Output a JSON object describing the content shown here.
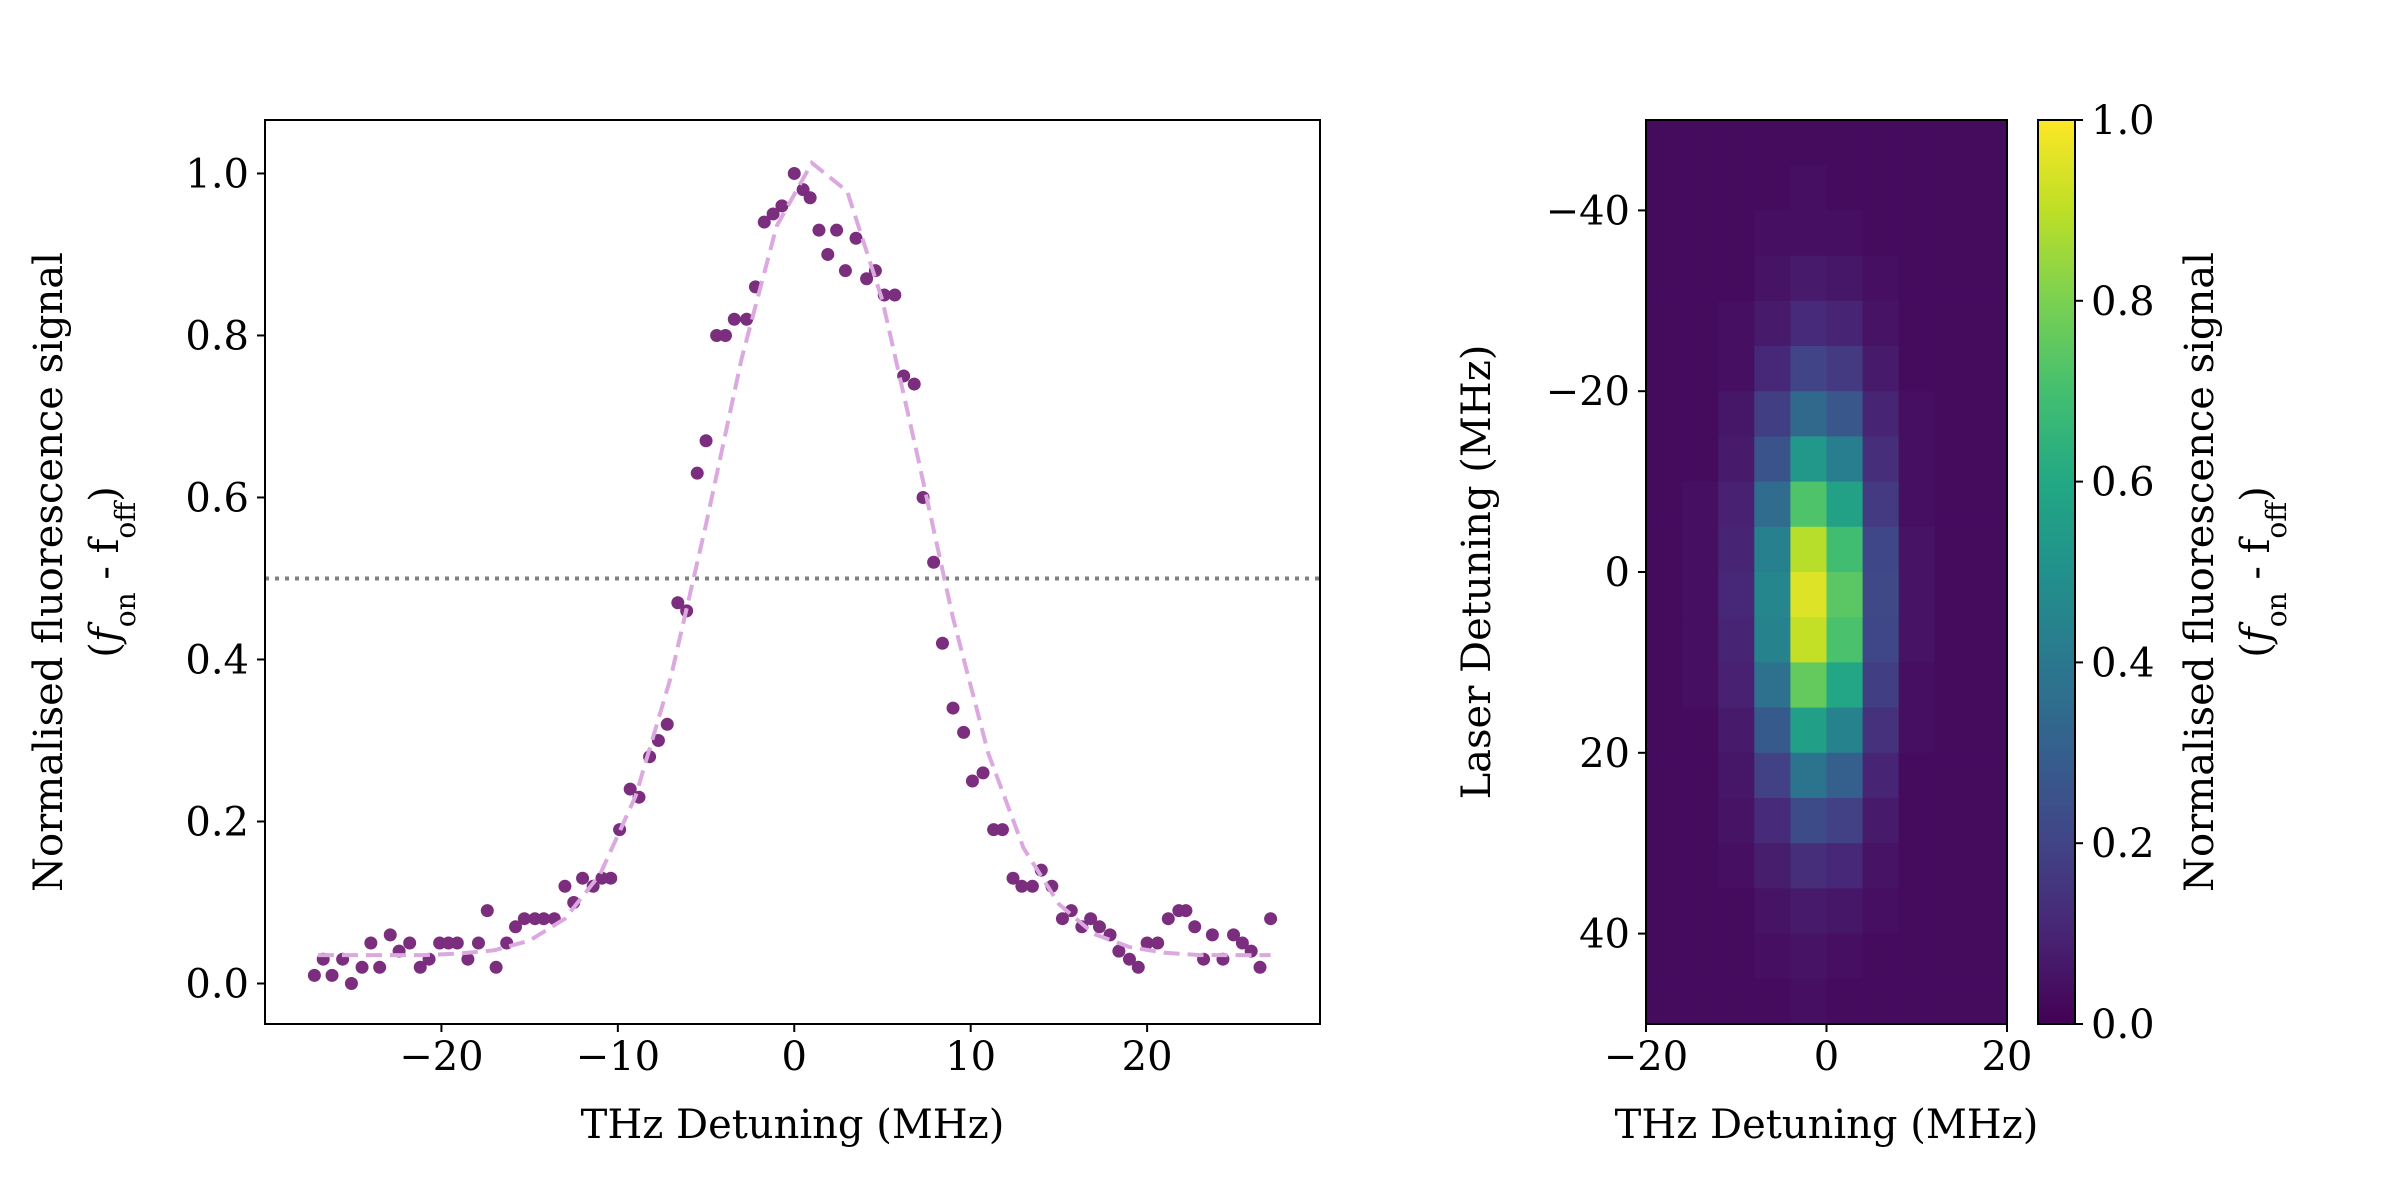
{
  "chart_data": [
    {
      "type": "scatter",
      "xlabel": "THz Detuning (MHz)",
      "ylabel": {
        "line1": "Normalised fluorescence signal",
        "line2": [
          "(",
          "f",
          "on",
          " - f",
          "off",
          ")"
        ]
      },
      "xlim": [
        -30,
        29.8
      ],
      "ylim": [
        -0.05,
        1.066
      ],
      "xticks": [
        {
          "value": -20,
          "label": "−20"
        },
        {
          "value": -10,
          "label": "−10"
        },
        0,
        10,
        20
      ],
      "yticks": [
        {
          "value": 0,
          "label": "0.0"
        },
        {
          "value": 0.2,
          "label": "0.2"
        },
        {
          "value": 0.4,
          "label": "0.4"
        },
        {
          "value": 0.6,
          "label": "0.6"
        },
        {
          "value": 0.8,
          "label": "0.8"
        },
        {
          "value": 1,
          "label": "1.0"
        }
      ],
      "hline": {
        "value": 0.5,
        "color": "#808080",
        "style": "dotted"
      },
      "series": [
        {
          "type": "scatter",
          "color": "#7b2d7e",
          "x": [
            -27.2,
            -26.7,
            -26.2,
            -25.6,
            -25.1,
            -24.5,
            -24.0,
            -23.5,
            -22.9,
            -22.4,
            -21.8,
            -21.2,
            -20.7,
            -20.1,
            -19.6,
            -19.1,
            -18.5,
            -17.9,
            -17.4,
            -16.9,
            -16.3,
            -15.8,
            -15.3,
            -14.7,
            -14.2,
            -13.6,
            -13.0,
            -12.5,
            -12.0,
            -11.4,
            -10.9,
            -10.4,
            -9.9,
            -9.3,
            -8.8,
            -8.2,
            -7.7,
            -7.2,
            -6.6,
            -6.1,
            -5.5,
            -5.0,
            -4.4,
            -3.9,
            -3.4,
            -2.7,
            -2.2,
            -1.7,
            -1.2,
            -0.7,
            0.0,
            0.5,
            0.9,
            1.4,
            1.9,
            2.4,
            2.9,
            3.5,
            4.1,
            4.6,
            5.1,
            5.7,
            6.2,
            6.8,
            7.3,
            7.9,
            8.4,
            9.0,
            9.6,
            10.1,
            10.7,
            11.3,
            11.8,
            12.4,
            12.9,
            13.5,
            14.0,
            14.6,
            15.2,
            15.7,
            16.3,
            16.8,
            17.3,
            17.9,
            18.4,
            19.0,
            19.5,
            20.0,
            20.6,
            21.2,
            21.8,
            22.2,
            22.7,
            23.2,
            23.7,
            24.3,
            24.9,
            25.4,
            25.9,
            26.4,
            27.0
          ],
          "values": [
            0.01,
            0.03,
            0.01,
            0.03,
            0.0,
            0.02,
            0.05,
            0.02,
            0.06,
            0.04,
            0.05,
            0.02,
            0.03,
            0.05,
            0.05,
            0.05,
            0.03,
            0.05,
            0.09,
            0.02,
            0.05,
            0.07,
            0.08,
            0.08,
            0.08,
            0.08,
            0.12,
            0.1,
            0.13,
            0.12,
            0.13,
            0.13,
            0.19,
            0.24,
            0.23,
            0.28,
            0.3,
            0.32,
            0.47,
            0.46,
            0.63,
            0.67,
            0.8,
            0.8,
            0.82,
            0.82,
            0.86,
            0.94,
            0.95,
            0.96,
            1.0,
            0.98,
            0.97,
            0.93,
            0.9,
            0.93,
            0.88,
            0.92,
            0.87,
            0.88,
            0.85,
            0.85,
            0.75,
            0.74,
            0.6,
            0.52,
            0.42,
            0.34,
            0.31,
            0.25,
            0.26,
            0.19,
            0.19,
            0.13,
            0.12,
            0.12,
            0.14,
            0.12,
            0.08,
            0.09,
            0.07,
            0.08,
            0.07,
            0.06,
            0.04,
            0.03,
            0.02,
            0.05,
            0.05,
            0.08,
            0.09,
            0.09,
            0.07,
            0.03,
            0.06,
            0.03,
            0.06,
            0.05,
            0.04,
            0.02,
            0.08
          ]
        },
        {
          "type": "line",
          "color": "#dba8e0",
          "dashed": true,
          "x": [
            -27,
            -25,
            -23,
            -21,
            -19,
            -17,
            -15,
            -13,
            -11,
            -9,
            -7,
            -5,
            -3,
            -1,
            1,
            3,
            5,
            7,
            9,
            11,
            13,
            15,
            17,
            19,
            21,
            23,
            25,
            27
          ],
          "values": [
            0.035,
            0.035,
            0.035,
            0.035,
            0.037,
            0.041,
            0.053,
            0.08,
            0.135,
            0.231,
            0.378,
            0.567,
            0.77,
            0.935,
            1.013,
            0.978,
            0.843,
            0.65,
            0.451,
            0.284,
            0.167,
            0.098,
            0.061,
            0.045,
            0.038,
            0.035,
            0.035,
            0.035
          ]
        }
      ]
    },
    {
      "type": "heatmap",
      "xlabel": "THz Detuning (MHz)",
      "ylabel": "Laser Detuning (MHz)",
      "xlim": [
        -20,
        20
      ],
      "ylim": [
        -50,
        50
      ],
      "y_inverted": true,
      "xticks": [
        {
          "value": -20,
          "label": "−20"
        },
        0,
        20
      ],
      "yticks": [
        {
          "value": -40,
          "label": "−40"
        },
        {
          "value": -20,
          "label": "−20"
        },
        0,
        20,
        40
      ],
      "colormap": "viridis",
      "values": [
        [
          0.03,
          0.03,
          0.03,
          0.03,
          0.03,
          0.03,
          0.03,
          0.03,
          0.03,
          0.03
        ],
        [
          0.03,
          0.03,
          0.03,
          0.03,
          0.04,
          0.03,
          0.03,
          0.03,
          0.03,
          0.03
        ],
        [
          0.03,
          0.03,
          0.03,
          0.04,
          0.04,
          0.04,
          0.03,
          0.03,
          0.03,
          0.03
        ],
        [
          0.03,
          0.03,
          0.03,
          0.05,
          0.07,
          0.06,
          0.04,
          0.03,
          0.03,
          0.03
        ],
        [
          0.03,
          0.03,
          0.04,
          0.07,
          0.12,
          0.1,
          0.05,
          0.03,
          0.03,
          0.03
        ],
        [
          0.03,
          0.03,
          0.04,
          0.11,
          0.2,
          0.17,
          0.07,
          0.03,
          0.03,
          0.03
        ],
        [
          0.03,
          0.03,
          0.06,
          0.18,
          0.34,
          0.27,
          0.1,
          0.04,
          0.03,
          0.03
        ],
        [
          0.03,
          0.03,
          0.07,
          0.26,
          0.53,
          0.42,
          0.13,
          0.04,
          0.03,
          0.03
        ],
        [
          0.03,
          0.04,
          0.09,
          0.35,
          0.72,
          0.57,
          0.17,
          0.04,
          0.03,
          0.03
        ],
        [
          0.03,
          0.04,
          0.1,
          0.43,
          0.89,
          0.69,
          0.21,
          0.05,
          0.03,
          0.03
        ],
        [
          0.03,
          0.04,
          0.11,
          0.46,
          0.95,
          0.74,
          0.22,
          0.05,
          0.03,
          0.03
        ],
        [
          0.03,
          0.04,
          0.1,
          0.44,
          0.91,
          0.71,
          0.21,
          0.05,
          0.03,
          0.03
        ],
        [
          0.03,
          0.04,
          0.09,
          0.37,
          0.76,
          0.59,
          0.18,
          0.04,
          0.03,
          0.03
        ],
        [
          0.03,
          0.03,
          0.07,
          0.28,
          0.56,
          0.44,
          0.14,
          0.04,
          0.03,
          0.03
        ],
        [
          0.03,
          0.03,
          0.06,
          0.19,
          0.38,
          0.3,
          0.1,
          0.03,
          0.03,
          0.03
        ],
        [
          0.03,
          0.03,
          0.05,
          0.12,
          0.23,
          0.19,
          0.07,
          0.03,
          0.03,
          0.03
        ],
        [
          0.03,
          0.03,
          0.04,
          0.08,
          0.13,
          0.11,
          0.05,
          0.03,
          0.03,
          0.03
        ],
        [
          0.03,
          0.03,
          0.03,
          0.05,
          0.07,
          0.06,
          0.04,
          0.03,
          0.03,
          0.03
        ],
        [
          0.03,
          0.03,
          0.03,
          0.04,
          0.05,
          0.04,
          0.03,
          0.03,
          0.03,
          0.03
        ],
        [
          0.03,
          0.03,
          0.03,
          0.03,
          0.04,
          0.03,
          0.03,
          0.03,
          0.03,
          0.03
        ]
      ],
      "colorbar": {
        "label": {
          "line1": "Normalised fluorescence signal",
          "line2": [
            "(",
            "f",
            "on",
            " - f",
            "off",
            ")"
          ]
        },
        "clim": [
          0,
          1
        ],
        "ticks": [
          {
            "value": 0,
            "label": "0.0"
          },
          {
            "value": 0.2,
            "label": "0.2"
          },
          {
            "value": 0.4,
            "label": "0.4"
          },
          {
            "value": 0.6,
            "label": "0.6"
          },
          {
            "value": 0.8,
            "label": "0.8"
          },
          {
            "value": 1,
            "label": "1.0"
          }
        ]
      }
    }
  ]
}
